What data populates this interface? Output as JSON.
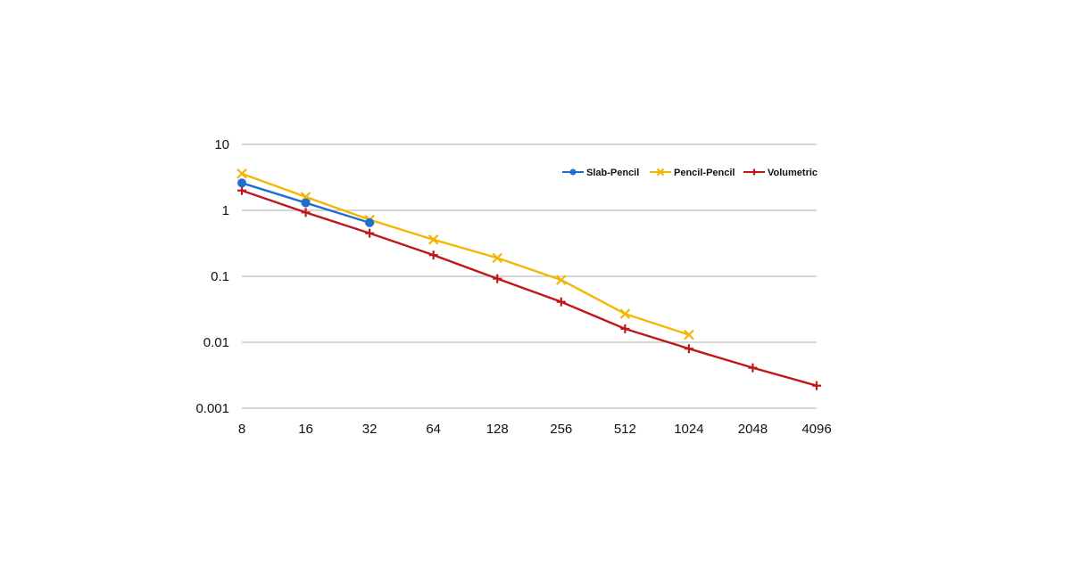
{
  "chart_data": {
    "type": "line",
    "x": [
      8,
      16,
      32,
      64,
      128,
      256,
      512,
      1024,
      2048,
      4096
    ],
    "x_tick_labels": [
      "8",
      "16",
      "32",
      "64",
      "128",
      "256",
      "512",
      "1024",
      "2048",
      "4096"
    ],
    "x_scale": "log2",
    "y_scale": "log",
    "ylim": [
      0.001,
      10
    ],
    "y_tick_values": [
      0.001,
      0.01,
      0.1,
      1,
      10
    ],
    "y_tick_labels": [
      "0.001",
      "0.01",
      "0.1",
      "1",
      "10"
    ],
    "grid": "horizontal",
    "legend": "top-right",
    "title": "",
    "xlabel": "",
    "ylabel": "",
    "series": [
      {
        "name": "Slab-Pencil",
        "color": "#1f6fd0",
        "marker": "circle",
        "x": [
          8,
          16,
          32
        ],
        "values": [
          2.6,
          1.3,
          0.65
        ]
      },
      {
        "name": "Pencil-Pencil",
        "color": "#f2b705",
        "marker": "x",
        "x": [
          8,
          16,
          32,
          64,
          128,
          256,
          512,
          1024
        ],
        "values": [
          3.6,
          1.6,
          0.72,
          0.36,
          0.19,
          0.088,
          0.027,
          0.013
        ]
      },
      {
        "name": "Volumetric",
        "color": "#c0171b",
        "marker": "plus",
        "x": [
          8,
          16,
          32,
          64,
          128,
          256,
          512,
          1024,
          2048,
          4096
        ],
        "values": [
          2.0,
          0.93,
          0.45,
          0.21,
          0.092,
          0.041,
          0.016,
          0.008,
          0.0041,
          0.0022
        ]
      }
    ]
  }
}
